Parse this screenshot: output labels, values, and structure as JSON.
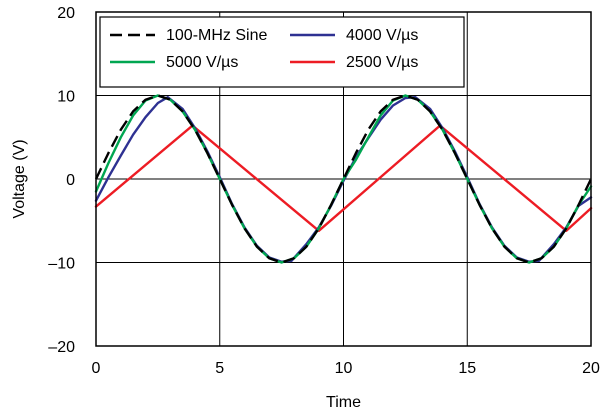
{
  "chart_data": {
    "type": "line",
    "title": "",
    "xlabel": "Time",
    "ylabel": "Voltage (V)",
    "xlim": [
      0,
      20
    ],
    "ylim": [
      -20,
      20
    ],
    "x_ticks": [
      0,
      5,
      10,
      15,
      20
    ],
    "y_ticks": [
      -20,
      -10,
      0,
      10,
      20
    ],
    "x_tick_labels": [
      "0",
      "5",
      "10",
      "15",
      "20"
    ],
    "y_tick_labels": [
      "–20",
      "–10",
      "0",
      "10",
      "20"
    ],
    "grid": true,
    "legend_position": "top-left",
    "series": [
      {
        "name": "100-MHz Sine",
        "color": "#000000",
        "dash": true,
        "x": [
          0,
          0.5,
          1,
          1.5,
          2,
          2.5,
          3,
          3.5,
          4,
          4.5,
          5,
          5.5,
          6,
          6.5,
          7,
          7.5,
          8,
          8.5,
          9,
          9.5,
          10,
          10.5,
          11,
          11.5,
          12,
          12.5,
          13,
          13.5,
          14,
          14.5,
          15,
          15.5,
          16,
          16.5,
          17,
          17.5,
          18,
          18.5,
          19,
          19.5,
          20
        ],
        "y": [
          0,
          3.1,
          5.9,
          8.1,
          9.5,
          10,
          9.5,
          8.1,
          5.9,
          3.1,
          0,
          -3.1,
          -5.9,
          -8.1,
          -9.5,
          -10,
          -9.5,
          -8.1,
          -5.9,
          -3.1,
          0,
          3.1,
          5.9,
          8.1,
          9.5,
          10,
          9.5,
          8.1,
          5.9,
          3.1,
          0,
          -3.1,
          -5.9,
          -8.1,
          -9.5,
          -10,
          -9.5,
          -8.1,
          -5.9,
          -3.1,
          0
        ]
      },
      {
        "name": "5000 V/µs",
        "color": "#00a651",
        "dash": false,
        "x": [
          0,
          0.5,
          1,
          1.5,
          2,
          2.5,
          3,
          3.5,
          4,
          4.5,
          5,
          5.5,
          6,
          6.5,
          7,
          7.5,
          8,
          8.5,
          9,
          9.5,
          10,
          10.5,
          11,
          11.5,
          12,
          12.5,
          13,
          13.5,
          14,
          14.5,
          15,
          15.5,
          16,
          16.5,
          17,
          17.5,
          18,
          18.5,
          19,
          19.5,
          20
        ],
        "y": [
          -1.5,
          1.9,
          5,
          7.6,
          9.4,
          10,
          9.5,
          8.1,
          5.9,
          3.1,
          0,
          -3.1,
          -5.9,
          -8.1,
          -9.5,
          -10,
          -9.5,
          -8.1,
          -5.9,
          -3.1,
          0,
          2.3,
          5,
          7.6,
          9.4,
          10,
          9.5,
          8.1,
          5.9,
          3.1,
          0,
          -3.1,
          -5.9,
          -8.1,
          -9.5,
          -10,
          -9.5,
          -8.1,
          -5.9,
          -3.1,
          -0.9
        ]
      },
      {
        "name": "4000 V/µs",
        "color": "#2e3192",
        "dash": false,
        "x": [
          0,
          0.5,
          1,
          1.5,
          2,
          2.5,
          2.9,
          3.5,
          4,
          4.5,
          5,
          5.5,
          6,
          6.5,
          7,
          7.5,
          7.9,
          8.5,
          9,
          9.5,
          10,
          10.5,
          11,
          11.5,
          12,
          12.5,
          12.9,
          13.5,
          14,
          14.5,
          15,
          15.5,
          16,
          16.5,
          17,
          17.5,
          17.9,
          18.5,
          19,
          19.5,
          20
        ],
        "y": [
          -2.6,
          0.2,
          2.8,
          5.3,
          7.4,
          9.1,
          9.8,
          8.4,
          6.1,
          3.3,
          0.2,
          -3,
          -5.8,
          -8,
          -9.4,
          -9.9,
          -9.8,
          -7.8,
          -5.8,
          -3.2,
          -0.2,
          2.6,
          4.9,
          7.1,
          8.8,
          9.7,
          9.8,
          8.4,
          6.1,
          3.3,
          0.2,
          -3,
          -5.8,
          -8,
          -9.4,
          -9.9,
          -9.8,
          -7.8,
          -5.8,
          -3.2,
          -2.2
        ]
      },
      {
        "name": "2500 V/µs",
        "color": "#ed1c24",
        "dash": false,
        "x": [
          0,
          3.9,
          9,
          13.9,
          19,
          20
        ],
        "y": [
          -3.3,
          6.4,
          -6.2,
          6.4,
          -6.2,
          -3.5
        ]
      }
    ]
  }
}
